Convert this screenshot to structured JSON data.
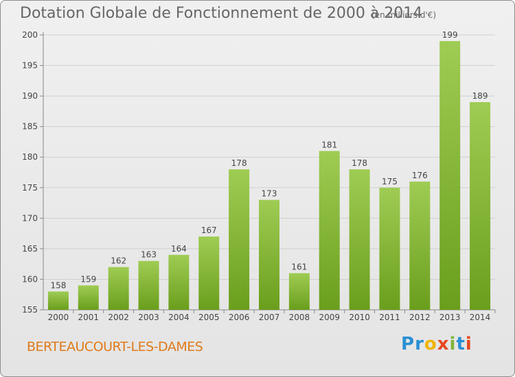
{
  "header": {
    "title": "Dotation Globale de Fonctionnement de 2000 à 2014",
    "subtitle": "(en milliers d'€)"
  },
  "footer": {
    "commune": "BERTEAUCOURT-LES-DAMES",
    "logo_letters": [
      "P",
      "r",
      "o",
      "x",
      "i",
      "t",
      "i"
    ],
    "logo_colors": [
      "#2a8fd4",
      "#2a8fd4",
      "#f0b400",
      "#e8471e",
      "#7fb43a",
      "#2a8fd4",
      "#e8471e"
    ]
  },
  "chart_data": {
    "type": "bar",
    "title": "Dotation Globale de Fonctionnement de 2000 à 2014",
    "subtitle": "(en milliers d'€)",
    "xlabel": "",
    "ylabel": "",
    "categories": [
      "2000",
      "2001",
      "2002",
      "2003",
      "2004",
      "2005",
      "2006",
      "2007",
      "2008",
      "2009",
      "2010",
      "2011",
      "2012",
      "2013",
      "2014"
    ],
    "values": [
      158,
      159,
      162,
      163,
      164,
      167,
      178,
      173,
      161,
      181,
      178,
      175,
      176,
      199,
      189
    ],
    "ylim": [
      155,
      200
    ],
    "yticks": [
      155,
      160,
      165,
      170,
      175,
      180,
      185,
      190,
      195,
      200
    ],
    "grid": true,
    "bar_color_top": "#9fcc54",
    "bar_color_bottom": "#6a9e1c"
  }
}
